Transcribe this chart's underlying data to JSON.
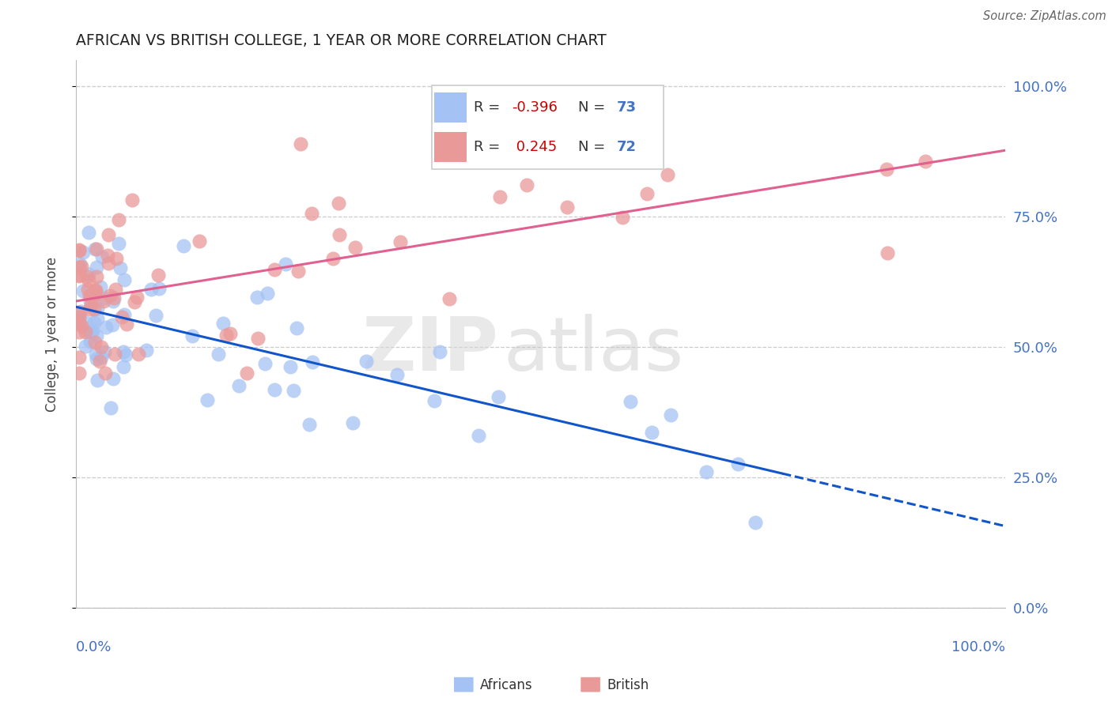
{
  "title": "AFRICAN VS BRITISH COLLEGE, 1 YEAR OR MORE CORRELATION CHART",
  "source": "Source: ZipAtlas.com",
  "ylabel": "College, 1 year or more",
  "color_african": "#a4c2f4",
  "color_british": "#ea9999",
  "color_african_line": "#1155cc",
  "color_british_line": "#e06090",
  "watermark_zip": "ZIP",
  "watermark_atlas": "atlas",
  "r_african": "-0.396",
  "n_african": "73",
  "r_british": "0.245",
  "n_british": "72",
  "ytick_vals": [
    0.0,
    0.25,
    0.5,
    0.75,
    1.0
  ],
  "ytick_labels": [
    "0.0%",
    "25.0%",
    "50.0%",
    "75.0%",
    "100.0%"
  ],
  "xlim": [
    0.0,
    1.0
  ],
  "ylim": [
    0.0,
    1.05
  ]
}
